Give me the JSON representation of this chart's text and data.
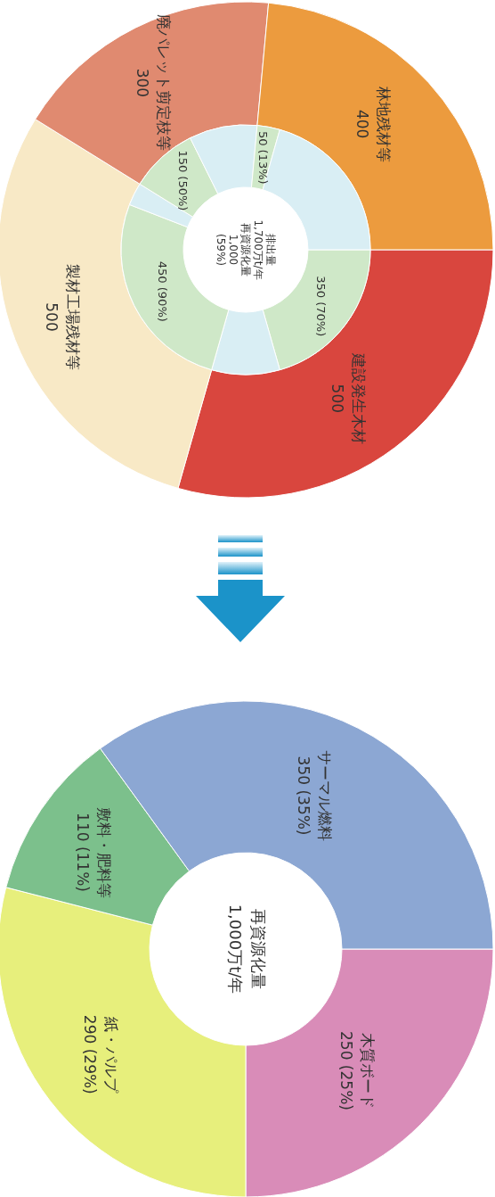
{
  "chart_data": [
    {
      "type": "donut",
      "categories": [
        "建設発生木材",
        null,
        "製材工場残材等",
        null,
        "廃パレット剪定枝等",
        null,
        "林地残材等",
        null
      ],
      "data_labels": true,
      "series": [
        {
          "values": [
            500,
            null,
            500,
            null,
            300,
            null,
            400,
            null
          ],
          "colors": [
            "#d9463e",
            null,
            "#f8e9c6",
            null,
            "#e08a70",
            null,
            "#ec9b3e",
            null
          ]
        },
        {
          "values": [
            350,
            150,
            450,
            50,
            150,
            150,
            50,
            350
          ],
          "colors": [
            "#cfe8c8",
            "#d9eef4",
            "#cfe8c8",
            "#d9eef4",
            "#cfe8c8",
            "#d9eef4",
            "#cfe8c8",
            "#d9eef4"
          ],
          "value_labels": [
            "350 (70%)",
            null,
            "450 (90%)",
            null,
            "150 (50%)",
            null,
            "50 (13%)",
            null
          ]
        }
      ],
      "annotations": [
        "排出量",
        "1,700万t/年",
        "再資源化量",
        "1,000",
        "(59%)"
      ]
    },
    {
      "type": "donut",
      "categories": [
        "木質ボード",
        "紙・パルプ",
        "敷料・肥料等",
        "サーマル燃料"
      ],
      "values": [
        250,
        290,
        110,
        350
      ],
      "colors": [
        "#d98cb8",
        "#e7ef7c",
        "#7cc08c",
        "#8ca7d3"
      ],
      "value_labels": [
        "250 (25%)",
        "290 (29%)",
        "110 (11%)",
        "350 (35%)"
      ],
      "annotations": [
        "再資源化量",
        "1,000万t/年"
      ]
    }
  ]
}
